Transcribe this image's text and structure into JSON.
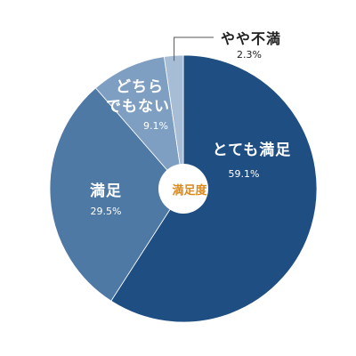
{
  "chart_data": {
    "type": "pie",
    "center_label": "満足度",
    "slices": [
      {
        "label": "とても満足",
        "value": 59.1,
        "display": "59.1%",
        "color": "#1f4e82"
      },
      {
        "label": "満足",
        "value": 29.5,
        "display": "29.5%",
        "color": "#4f79a5"
      },
      {
        "label": "どちらでもない",
        "label_lines": [
          "どちら",
          "でもない"
        ],
        "value": 9.1,
        "display": "9.1%",
        "color": "#7f9fc2"
      },
      {
        "label": "やや不満",
        "value": 2.3,
        "display": "2.3%",
        "color": "#a7bdd6"
      }
    ],
    "legend": "none",
    "start_direction": "top",
    "direction": "clockwise",
    "donut_hole_color": "#ffffff"
  }
}
